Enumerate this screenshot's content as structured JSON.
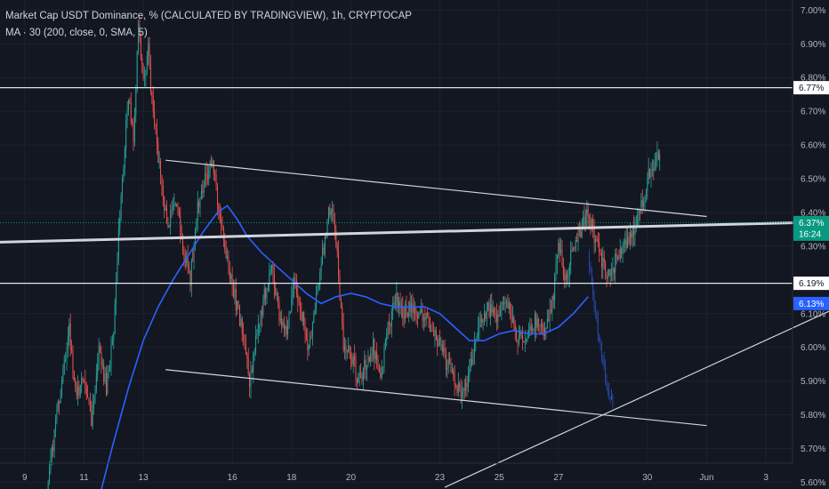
{
  "legend": {
    "title": "Market Cap USDT Dominance, % (CALCULATED BY TRADINGVIEW), 1h, CRYPTOCAP",
    "indicator": "MA · 30 (200, close, 0, SMA, 5)"
  },
  "colors": {
    "background": "#131722",
    "up": "#26a69a",
    "down": "#ef5350",
    "ma": "#2962ff",
    "trend_lines": "#d1d4dc",
    "text": "#b2b5be",
    "current_badge": "#089981",
    "ma_badge": "#2962ff"
  },
  "badges": {
    "level_high": "6.77%",
    "current_price": "6.37%",
    "countdown": "16:24",
    "level_low": "6.19%",
    "ma_value": "6.13%"
  },
  "chart_data": {
    "type": "candlestick",
    "title": "Market Cap USDT Dominance, % (CALCULATED BY TRADINGVIEW), 1h, CRYPTOCAP",
    "ylabel": "",
    "xlabel": "",
    "ylim": [
      5.58,
      7.03
    ],
    "y_ticks": [
      "7.00%",
      "6.90%",
      "6.80%",
      "6.70%",
      "6.60%",
      "6.50%",
      "6.40%",
      "6.30%",
      "6.10%",
      "6.00%",
      "5.90%",
      "5.80%",
      "5.70%",
      "5.60%"
    ],
    "x_ticks": [
      "9",
      "11",
      "13",
      "16",
      "18",
      "20",
      "23",
      "25",
      "27",
      "30",
      "Jun",
      "3"
    ],
    "x_tick_dates": [
      "2021-05-09",
      "2021-05-11",
      "2021-05-13",
      "2021-05-16",
      "2021-05-18",
      "2021-05-20",
      "2021-05-23",
      "2021-05-25",
      "2021-05-27",
      "2021-05-30",
      "2021-06-01",
      "2021-06-03"
    ],
    "x_range": [
      "2021-05-08T04:00",
      "2021-06-05T03:00"
    ],
    "grid": true,
    "price_path": [
      [
        "2021-05-09T18:00",
        5.55
      ],
      [
        "2021-05-10T00:00",
        5.75
      ],
      [
        "2021-05-10T06:00",
        5.9
      ],
      [
        "2021-05-10T12:00",
        6.05
      ],
      [
        "2021-05-10T18:00",
        5.85
      ],
      [
        "2021-05-11T00:00",
        5.92
      ],
      [
        "2021-05-11T06:00",
        5.78
      ],
      [
        "2021-05-11T12:00",
        6.0
      ],
      [
        "2021-05-11T18:00",
        5.88
      ],
      [
        "2021-05-12T00:00",
        6.05
      ],
      [
        "2021-05-12T04:00",
        6.35
      ],
      [
        "2021-05-12T08:00",
        6.55
      ],
      [
        "2021-05-12T12:00",
        6.75
      ],
      [
        "2021-05-12T16:00",
        6.62
      ],
      [
        "2021-05-12T20:00",
        6.95
      ],
      [
        "2021-05-13T00:00",
        6.78
      ],
      [
        "2021-05-13T04:00",
        6.88
      ],
      [
        "2021-05-13T08:00",
        6.68
      ],
      [
        "2021-05-13T14:00",
        6.5
      ],
      [
        "2021-05-13T20:00",
        6.35
      ],
      [
        "2021-05-14T02:00",
        6.45
      ],
      [
        "2021-05-14T08:00",
        6.3
      ],
      [
        "2021-05-14T14:00",
        6.2
      ],
      [
        "2021-05-14T20:00",
        6.42
      ],
      [
        "2021-05-15T02:00",
        6.5
      ],
      [
        "2021-05-15T08:00",
        6.55
      ],
      [
        "2021-05-15T14:00",
        6.38
      ],
      [
        "2021-05-15T20:00",
        6.25
      ],
      [
        "2021-05-16T02:00",
        6.15
      ],
      [
        "2021-05-16T08:00",
        6.05
      ],
      [
        "2021-05-16T14:00",
        5.9
      ],
      [
        "2021-05-16T20:00",
        6.05
      ],
      [
        "2021-05-17T02:00",
        6.15
      ],
      [
        "2021-05-17T08:00",
        6.25
      ],
      [
        "2021-05-17T14:00",
        6.1
      ],
      [
        "2021-05-17T20:00",
        6.05
      ],
      [
        "2021-05-18T02:00",
        6.2
      ],
      [
        "2021-05-18T08:00",
        6.1
      ],
      [
        "2021-05-18T14:00",
        6.0
      ],
      [
        "2021-05-18T20:00",
        6.15
      ],
      [
        "2021-05-19T02:00",
        6.3
      ],
      [
        "2021-05-19T06:00",
        6.4
      ],
      [
        "2021-05-19T10:00",
        6.38
      ],
      [
        "2021-05-19T14:00",
        6.22
      ],
      [
        "2021-05-19T18:00",
        6.0
      ],
      [
        "2021-05-20T00:00",
        5.98
      ],
      [
        "2021-05-20T06:00",
        5.9
      ],
      [
        "2021-05-20T12:00",
        5.95
      ],
      [
        "2021-05-20T18:00",
        6.0
      ],
      [
        "2021-05-21T00:00",
        5.92
      ],
      [
        "2021-05-21T06:00",
        6.05
      ],
      [
        "2021-05-21T12:00",
        6.15
      ],
      [
        "2021-05-21T18:00",
        6.1
      ],
      [
        "2021-05-22T00:00",
        6.12
      ],
      [
        "2021-05-22T06:00",
        6.08
      ],
      [
        "2021-05-22T12:00",
        6.1
      ],
      [
        "2021-05-22T18:00",
        6.05
      ],
      [
        "2021-05-23T00:00",
        6.0
      ],
      [
        "2021-05-23T06:00",
        5.95
      ],
      [
        "2021-05-23T12:00",
        5.9
      ],
      [
        "2021-05-23T18:00",
        5.86
      ],
      [
        "2021-05-24T00:00",
        5.92
      ],
      [
        "2021-05-24T06:00",
        6.05
      ],
      [
        "2021-05-24T12:00",
        6.1
      ],
      [
        "2021-05-24T18:00",
        6.12
      ],
      [
        "2021-05-25T00:00",
        6.08
      ],
      [
        "2021-05-25T06:00",
        6.15
      ],
      [
        "2021-05-25T12:00",
        6.05
      ],
      [
        "2021-05-25T18:00",
        6.02
      ],
      [
        "2021-05-26T00:00",
        6.05
      ],
      [
        "2021-05-26T06:00",
        6.08
      ],
      [
        "2021-05-26T12:00",
        6.05
      ],
      [
        "2021-05-26T18:00",
        6.1
      ],
      [
        "2021-05-27T00:00",
        6.3
      ],
      [
        "2021-05-27T06:00",
        6.2
      ],
      [
        "2021-05-27T12:00",
        6.3
      ],
      [
        "2021-05-27T18:00",
        6.35
      ],
      [
        "2021-05-28T00:00",
        6.4
      ],
      [
        "2021-05-28T06:00",
        6.32
      ],
      [
        "2021-05-28T12:00",
        6.25
      ],
      [
        "2021-05-28T18:00",
        6.2
      ],
      [
        "2021-05-29T00:00",
        6.28
      ],
      [
        "2021-05-29T06:00",
        6.3
      ],
      [
        "2021-05-29T12:00",
        6.34
      ],
      [
        "2021-05-29T18:00",
        6.4
      ],
      [
        "2021-05-30T00:00",
        6.5
      ],
      [
        "2021-05-30T06:00",
        6.55
      ],
      [
        "2021-05-30T10:00",
        6.58
      ]
    ],
    "ma_series": {
      "points": [
        [
          "2021-05-11T12:00",
          5.55
        ],
        [
          "2021-05-12T00:00",
          5.72
        ],
        [
          "2021-05-12T12:00",
          5.88
        ],
        [
          "2021-05-13T00:00",
          6.02
        ],
        [
          "2021-05-13T12:00",
          6.12
        ],
        [
          "2021-05-14T00:00",
          6.2
        ],
        [
          "2021-05-14T12:00",
          6.27
        ],
        [
          "2021-05-15T00:00",
          6.34
        ],
        [
          "2021-05-15T12:00",
          6.4
        ],
        [
          "2021-05-15T20:00",
          6.42
        ],
        [
          "2021-05-16T04:00",
          6.38
        ],
        [
          "2021-05-16T12:00",
          6.33
        ],
        [
          "2021-05-17T00:00",
          6.28
        ],
        [
          "2021-05-17T12:00",
          6.24
        ],
        [
          "2021-05-18T00:00",
          6.2
        ],
        [
          "2021-05-18T12:00",
          6.16
        ],
        [
          "2021-05-19T00:00",
          6.13
        ],
        [
          "2021-05-19T12:00",
          6.15
        ],
        [
          "2021-05-20T00:00",
          6.16
        ],
        [
          "2021-05-20T12:00",
          6.15
        ],
        [
          "2021-05-21T00:00",
          6.13
        ],
        [
          "2021-05-21T12:00",
          6.12
        ],
        [
          "2021-05-22T00:00",
          6.12
        ],
        [
          "2021-05-22T12:00",
          6.12
        ],
        [
          "2021-05-23T00:00",
          6.1
        ],
        [
          "2021-05-23T12:00",
          6.06
        ],
        [
          "2021-05-24T00:00",
          6.02
        ],
        [
          "2021-05-24T12:00",
          6.02
        ],
        [
          "2021-05-25T00:00",
          6.04
        ],
        [
          "2021-05-25T12:00",
          6.05
        ],
        [
          "2021-05-26T00:00",
          6.04
        ],
        [
          "2021-05-26T12:00",
          6.04
        ],
        [
          "2021-05-27T00:00",
          6.06
        ],
        [
          "2021-05-27T12:00",
          6.1
        ],
        [
          "2021-05-28T00:00",
          6.15
        ]
      ]
    },
    "projection": {
      "points": [
        [
          "2021-05-28T00:00",
          6.28
        ],
        [
          "2021-05-28T04:00",
          6.15
        ],
        [
          "2021-05-28T08:00",
          6.05
        ],
        [
          "2021-05-28T12:00",
          5.95
        ],
        [
          "2021-05-28T16:00",
          5.88
        ],
        [
          "2021-05-28T20:00",
          5.83
        ]
      ]
    },
    "trend_lines": [
      {
        "from": [
          "2021-05-13T18:00",
          6.555
        ],
        "to": [
          "2021-06-01T00:00",
          6.388
        ]
      },
      {
        "from": [
          "2021-05-13T18:00",
          5.934
        ],
        "to": [
          "2021-06-01T00:00",
          5.768
        ]
      },
      {
        "from": [
          "2021-05-08T04:00",
          6.312
        ],
        "to": [
          "2021-06-05T03:00",
          6.372
        ]
      },
      {
        "from": [
          "2021-05-23T04:00",
          5.585
        ],
        "to": [
          "2021-06-05T03:00",
          6.107
        ]
      }
    ],
    "horizontal_levels": [
      6.77,
      6.19
    ],
    "current_price_line": 6.37
  }
}
